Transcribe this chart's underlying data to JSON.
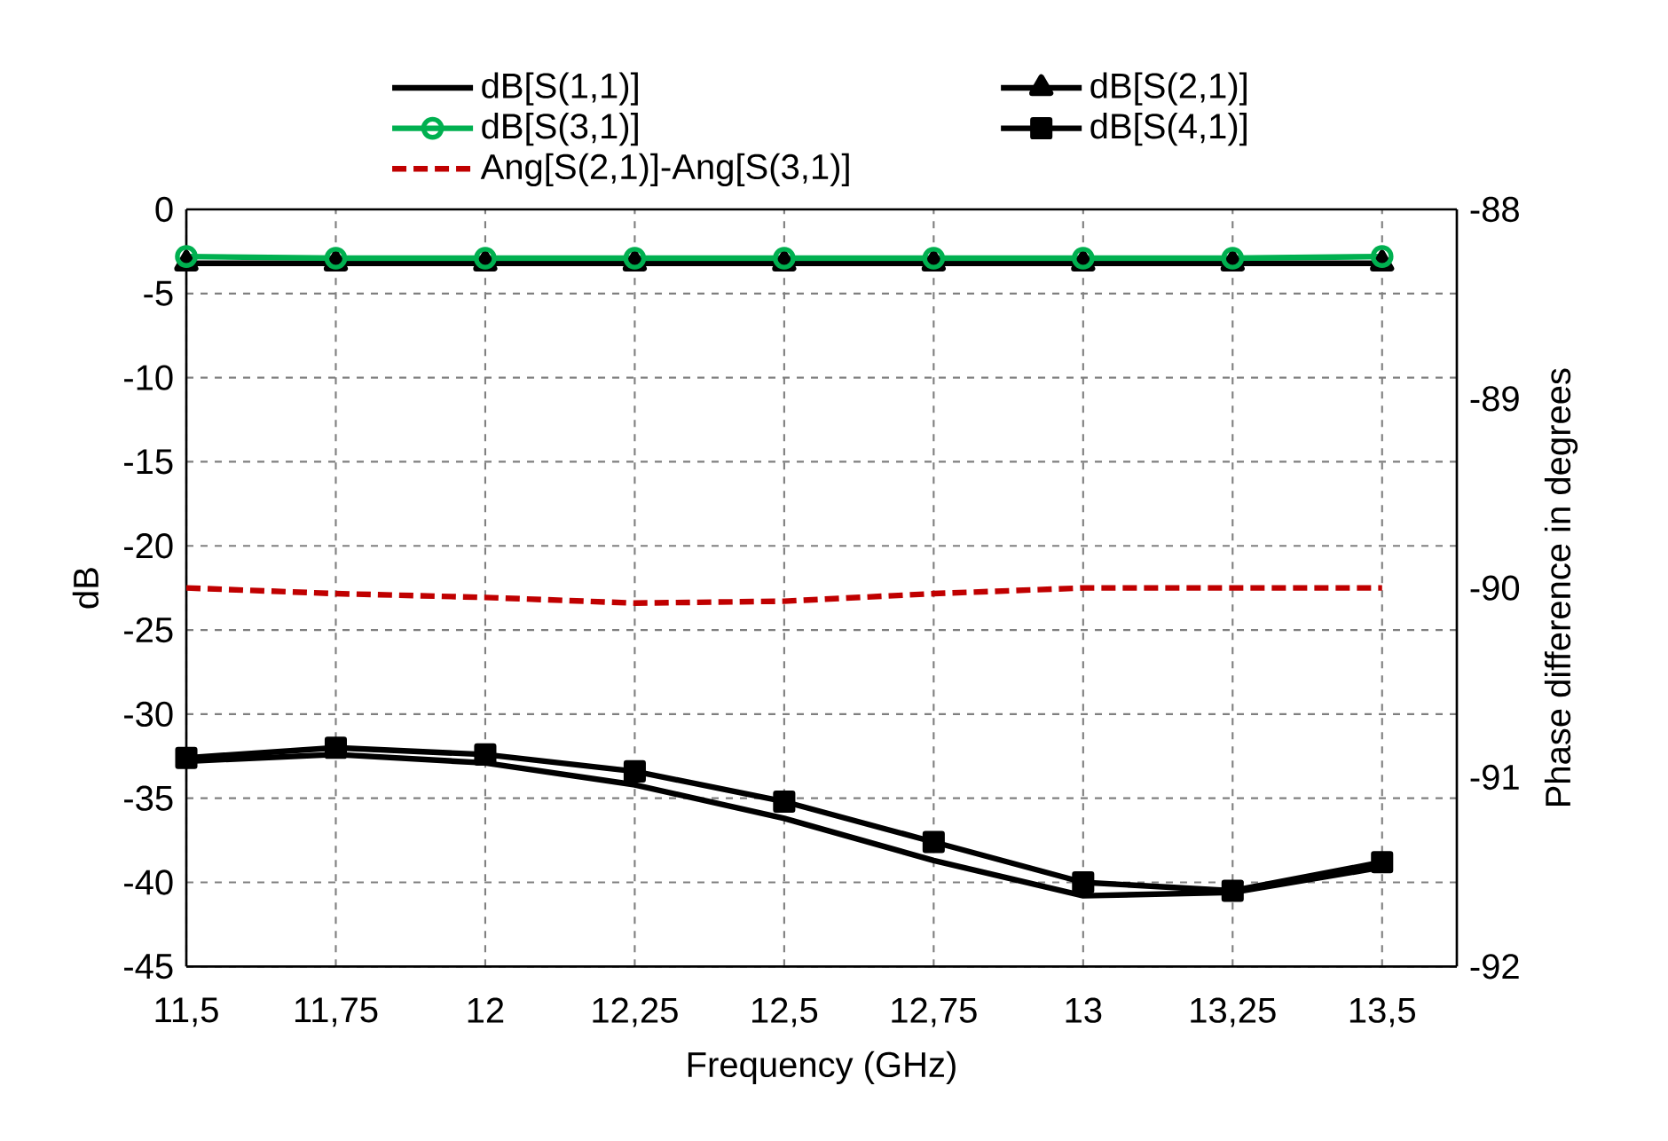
{
  "chart_data": {
    "type": "line",
    "xlabel": "Frequency (GHz)",
    "ylabel": "dB",
    "y2label": "Phase difference in degrees",
    "categories": [
      "11,5",
      "11,75",
      "12",
      "12,25",
      "12,5",
      "12,75",
      "13",
      "13,25",
      "13,5"
    ],
    "ylim": [
      -45,
      0
    ],
    "yticks": [
      0,
      -5,
      -10,
      -15,
      -20,
      -25,
      -30,
      -35,
      -40,
      -45
    ],
    "y2lim": [
      -92,
      -88
    ],
    "y2ticks": [
      -88,
      -89,
      -90,
      -91,
      -92
    ],
    "grid": true,
    "legend": "top",
    "series": [
      {
        "name": "dB[S(1,1)]",
        "color": "#000000",
        "marker": "none",
        "line_style": "solid",
        "values": [
          -32.8,
          -32.4,
          -32.9,
          -34.2,
          -36.2,
          -38.7,
          -40.8,
          -40.6,
          -39.1
        ]
      },
      {
        "name": "dB[S(2,1)]",
        "color": "#000000",
        "marker": "triangle",
        "line_style": "solid",
        "values": [
          -3.2,
          -3.2,
          -3.2,
          -3.2,
          -3.2,
          -3.2,
          -3.2,
          -3.2,
          -3.2
        ]
      },
      {
        "name": "dB[S(3,1)]",
        "color": "#00b050",
        "marker": "circle",
        "line_style": "solid",
        "values": [
          -2.8,
          -2.9,
          -2.9,
          -2.9,
          -2.9,
          -2.9,
          -2.9,
          -2.9,
          -2.8
        ]
      },
      {
        "name": "dB[S(4,1)]",
        "color": "#000000",
        "marker": "square",
        "line_style": "solid",
        "values": [
          -32.6,
          -32.0,
          -32.4,
          -33.4,
          -35.2,
          -37.6,
          -40.0,
          -40.5,
          -38.8
        ]
      },
      {
        "name": "Ang[S(2,1)]-Ang[S(3,1)]",
        "color": "#c00000",
        "marker": "none",
        "line_style": "dashed",
        "axis": "y2",
        "values": [
          -90.0,
          -90.03,
          -90.05,
          -90.08,
          -90.07,
          -90.03,
          -90.0,
          -90.0,
          -90.0
        ]
      }
    ]
  }
}
